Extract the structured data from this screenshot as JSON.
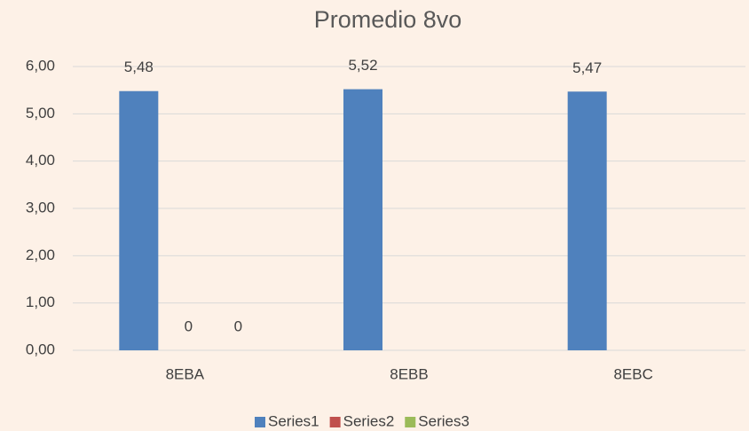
{
  "chart_data": {
    "type": "bar",
    "title": "Promedio 8vo",
    "categories": [
      "8EBA",
      "8EBB",
      "8EBC"
    ],
    "series": [
      {
        "name": "Series1",
        "color": "#4f81bd",
        "values": [
          5.48,
          5.52,
          5.47
        ],
        "value_labels": [
          "5,48",
          "5,52",
          "5,47"
        ]
      },
      {
        "name": "Series2",
        "color": "#c0504d",
        "values": [
          0,
          null,
          null
        ]
      },
      {
        "name": "Series3",
        "color": "#9bbb59",
        "values": [
          0,
          null,
          null
        ]
      }
    ],
    "ylim": [
      0,
      6
    ],
    "yticks": [
      {
        "value": 0,
        "label": "0,00"
      },
      {
        "value": 1,
        "label": "1,00"
      },
      {
        "value": 2,
        "label": "2,00"
      },
      {
        "value": 3,
        "label": "3,00"
      },
      {
        "value": 4,
        "label": "4,00"
      },
      {
        "value": 5,
        "label": "5,00"
      },
      {
        "value": 6,
        "label": "6,00"
      }
    ],
    "grid": true,
    "legend": "bottom"
  }
}
